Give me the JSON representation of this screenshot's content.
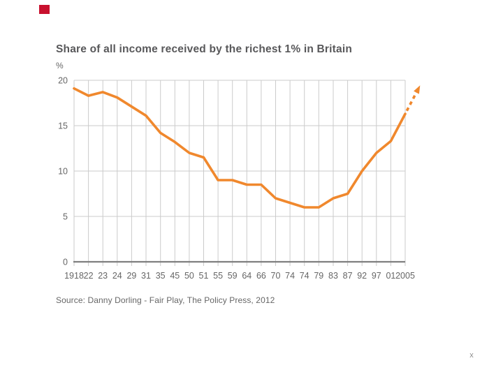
{
  "slide": {
    "title": "Share of all income received by the richest 1% in Britain",
    "y_axis_unit": "%",
    "source_caption": "Source: Danny Dorling - Fair Play, The Policy Press, 2012",
    "close_label": "x"
  },
  "colors": {
    "accent_red": "#C8102E",
    "line_orange": "#F0882D",
    "grid_gray": "#CBCBCB",
    "baseline_gray": "#7F7F7F",
    "text_dark": "#58585A",
    "text_gray": "#666666",
    "close_gray": "#8C8C8C"
  },
  "chart_data": {
    "type": "line",
    "title": "Share of all income received by the richest 1% in Britain",
    "xlabel": "",
    "ylabel": "%",
    "categories": [
      "1918",
      "22",
      "23",
      "24",
      "29",
      "31",
      "35",
      "45",
      "50",
      "51",
      "55",
      "59",
      "64",
      "66",
      "70",
      "74",
      "74",
      "79",
      "83",
      "87",
      "92",
      "97",
      "01",
      "2005"
    ],
    "values": [
      19.1,
      18.3,
      18.7,
      18.1,
      17.1,
      16.1,
      14.2,
      13.2,
      12,
      11.5,
      9,
      9,
      8.5,
      8.5,
      7,
      6.5,
      6,
      6,
      7,
      7.5,
      10,
      12,
      13.3,
      16.3
    ],
    "ylim": [
      0,
      20
    ],
    "yticks": [
      0,
      5,
      10,
      15,
      20
    ],
    "grid": true,
    "legend": "none",
    "annotations": [
      "dashed orange arrow after 2005 pointing up-right, indicating continued rise"
    ]
  }
}
